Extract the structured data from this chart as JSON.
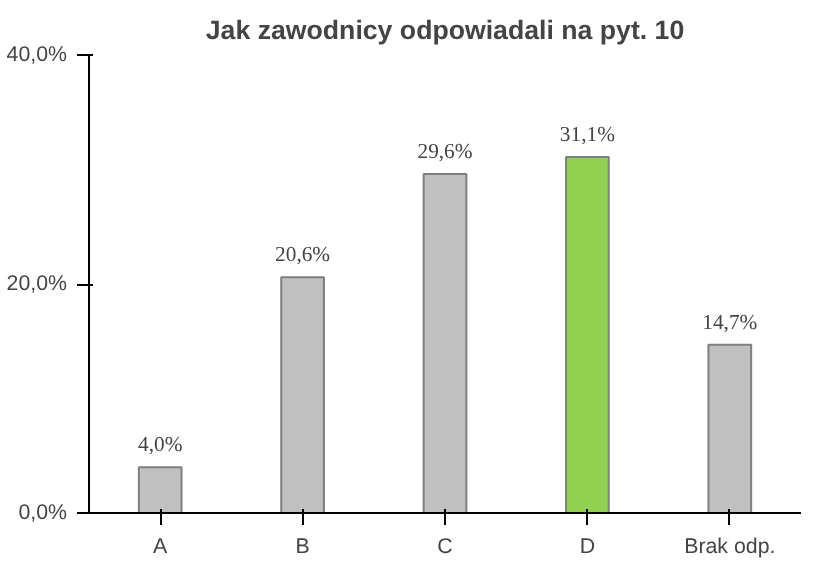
{
  "chart_data": {
    "type": "bar",
    "title": "Jak zawodnicy odpowiadali na pyt. 10",
    "categories": [
      "A",
      "B",
      "C",
      "D",
      "Brak odp."
    ],
    "values": [
      4.0,
      20.6,
      29.6,
      31.1,
      14.7
    ],
    "colors": [
      "#c0c0c0",
      "#c0c0c0",
      "#c0c0c0",
      "#92d050",
      "#c0c0c0"
    ],
    "value_labels": [
      "4,0%",
      "20,6%",
      "29,6%",
      "31,1%",
      "14,7%"
    ],
    "ylim": [
      0,
      40
    ],
    "yticks": [
      {
        "value": 0,
        "label": "0,0%"
      },
      {
        "value": 20,
        "label": "20,0%"
      },
      {
        "value": 40,
        "label": "40,0%"
      }
    ]
  }
}
